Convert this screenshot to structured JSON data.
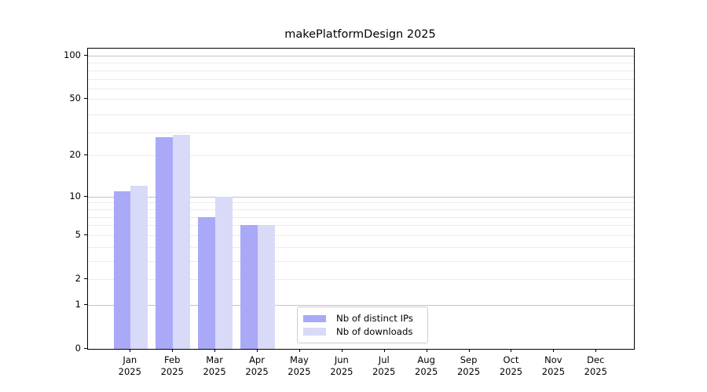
{
  "title": "makePlatformDesign 2025",
  "chart_data": {
    "type": "bar",
    "title": "makePlatformDesign 2025",
    "categories": [
      "Jan",
      "Feb",
      "Mar",
      "Apr",
      "May",
      "Jun",
      "Jul",
      "Aug",
      "Sep",
      "Oct",
      "Nov",
      "Dec"
    ],
    "category_year": "2025",
    "series": [
      {
        "name": "Nb of distinct IPs",
        "color": "#a9a9f8",
        "values": [
          11,
          27,
          7,
          6,
          0,
          0,
          0,
          0,
          0,
          0,
          0,
          0
        ]
      },
      {
        "name": "Nb of downloads",
        "color": "#d9d9f8",
        "values": [
          12,
          28,
          10,
          6,
          0,
          0,
          0,
          0,
          0,
          0,
          0,
          0
        ]
      }
    ],
    "yscale": "log1p",
    "ymax_axis": 112,
    "ytick_values": [
      0,
      1,
      2,
      5,
      10,
      20,
      50,
      100
    ],
    "ytick_labels": [
      "0",
      "1",
      "2",
      "5",
      "10",
      "20",
      "50",
      "100"
    ],
    "grid": {
      "major_values": [
        1,
        10,
        100
      ],
      "minor_values": [
        2,
        3,
        4,
        5,
        6,
        7,
        8,
        9,
        20,
        29,
        39,
        50,
        59,
        69,
        79,
        89
      ],
      "major_color": "#c3c3c3",
      "minor_color": "#ebebeb"
    },
    "legend_position": "lower center",
    "colors": {
      "spine": "#000000",
      "text": "#000000",
      "background": "#ffffff"
    }
  }
}
